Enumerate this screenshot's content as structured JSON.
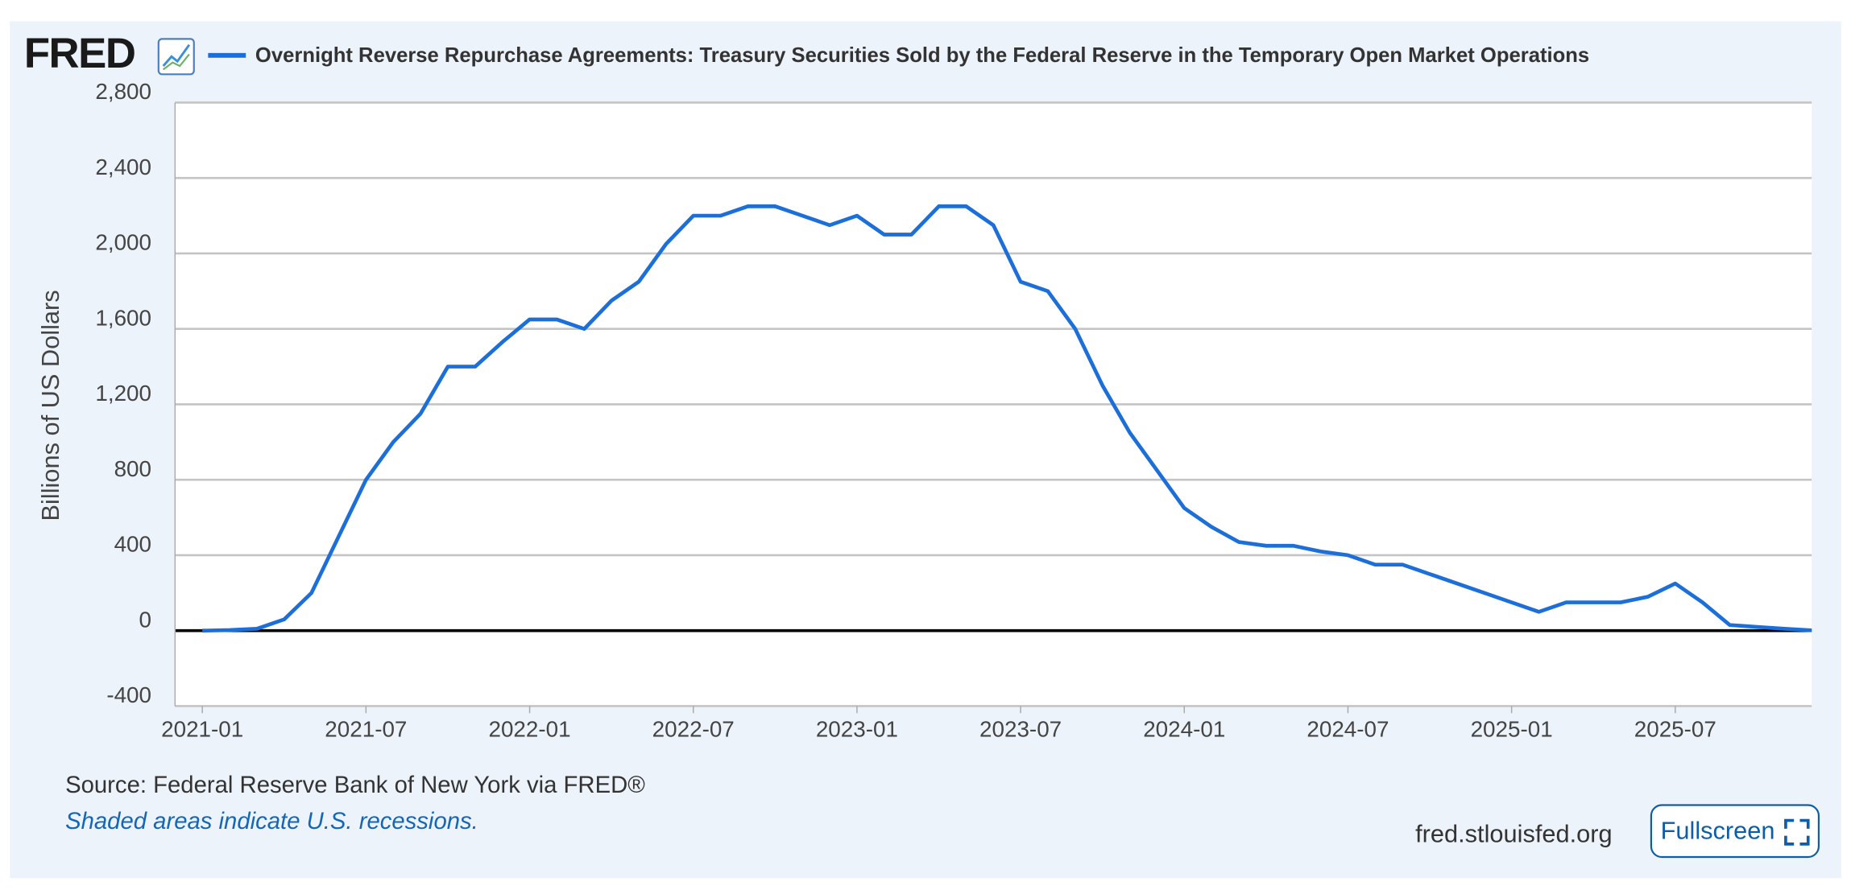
{
  "logo": "FRED",
  "chart_data": {
    "type": "line",
    "title": "Overnight Reverse Repurchase Agreements: Treasury Securities Sold by the Federal Reserve in the Temporary Open Market Operations",
    "ylabel": "Billions of US Dollars",
    "x": [
      "2021-01",
      "2021-02",
      "2021-03",
      "2021-04",
      "2021-05",
      "2021-06",
      "2021-07",
      "2021-08",
      "2021-09",
      "2021-10",
      "2021-11",
      "2021-12",
      "2022-01",
      "2022-02",
      "2022-03",
      "2022-04",
      "2022-05",
      "2022-06",
      "2022-07",
      "2022-08",
      "2022-09",
      "2022-10",
      "2022-11",
      "2022-12",
      "2023-01",
      "2023-02",
      "2023-03",
      "2023-04",
      "2023-05",
      "2023-06",
      "2023-07",
      "2023-08",
      "2023-09",
      "2023-10",
      "2023-11",
      "2023-12",
      "2024-01",
      "2024-02",
      "2024-03",
      "2024-04",
      "2024-05",
      "2024-06",
      "2024-07",
      "2024-08",
      "2024-09",
      "2024-10",
      "2024-11",
      "2024-12",
      "2025-01",
      "2025-02",
      "2025-03",
      "2025-04",
      "2025-05",
      "2025-06",
      "2025-07",
      "2025-08",
      "2025-09",
      "2025-10",
      "2025-11",
      "2025-12"
    ],
    "series": [
      {
        "name": "Overnight Reverse Repurchase Agreements: Treasury Securities Sold by the Federal Reserve in the Temporary Open Market Operations",
        "color": "#1c6fd8",
        "values": [
          0,
          3,
          10,
          60,
          200,
          500,
          800,
          1000,
          1150,
          1400,
          1400,
          1530,
          1650,
          1650,
          1600,
          1750,
          1850,
          2050,
          2200,
          2200,
          2250,
          2250,
          2200,
          2150,
          2200,
          2100,
          2100,
          2250,
          2250,
          2150,
          1850,
          1800,
          1600,
          1300,
          1050,
          850,
          650,
          550,
          470,
          450,
          450,
          420,
          400,
          350,
          350,
          300,
          250,
          200,
          150,
          100,
          150,
          150,
          150,
          180,
          250,
          150,
          30,
          20,
          10,
          2
        ]
      }
    ],
    "xlim": [
      "2020-12",
      "2025-12"
    ],
    "xticks": [
      "2021-01",
      "2021-07",
      "2022-01",
      "2022-07",
      "2023-01",
      "2023-07",
      "2024-01",
      "2024-07",
      "2025-01",
      "2025-07"
    ],
    "ylim": [
      -400,
      2800
    ],
    "yticks": [
      -400,
      0,
      400,
      {
        "value": 800,
        "label": "800"
      },
      {
        "value": 1200,
        "label": "1,200"
      },
      {
        "value": 1600,
        "label": "1,600"
      },
      {
        "value": 2000,
        "label": "2,000"
      },
      {
        "value": 2400,
        "label": "2,400"
      },
      {
        "value": 2800,
        "label": "2,800"
      }
    ],
    "grid": true,
    "source": "Source: Federal Reserve Bank of New York via FRED®",
    "note": "Shaded areas indicate U.S. recessions.",
    "site": "fred.stlouisfed.org",
    "button": "Fullscreen"
  }
}
